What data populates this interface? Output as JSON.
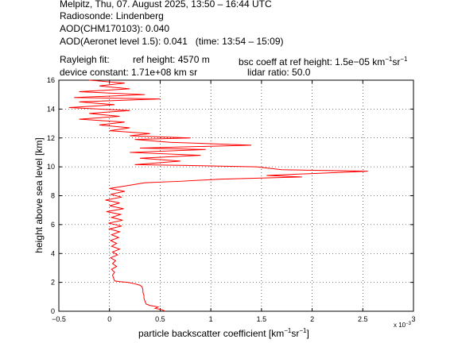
{
  "header": {
    "line1": "Melpitz, Thu, 07. August 2025, 13:50 – 16:44 UTC",
    "line2": "Radiosonde: Lindenberg",
    "line3": "AOD(CHM170103): 0.040",
    "line4": "AOD(Aeronet level 1.5): 0.041   (time: 13:54 – 15:09)",
    "rayleigh_label": "Rayleigh fit:",
    "ref_height": "ref height: 4570 m",
    "bsc_prefix": "bsc coeff at ref height: 1.5e−05 km",
    "sr_text": "sr",
    "exp_minus1": "−1",
    "device_constant": "device constant: 1.71e+08 km sr",
    "lidar_ratio": "lidar ratio: 50.0"
  },
  "chart_data": {
    "type": "line",
    "xlabel_prefix": "particle backscatter coefficient [km",
    "xlabel_sr": "sr",
    "xlabel_close": "]",
    "exp_minus1": "−1",
    "ylabel": "height above sea level [km]",
    "x_multiplier": "x 10",
    "x_multiplier_exp": "−3",
    "xlim": [
      -0.5,
      3
    ],
    "ylim": [
      0,
      16
    ],
    "xticks": [
      "−0.5",
      "0",
      "0.5",
      "1",
      "1.5",
      "2",
      "2.5",
      "3"
    ],
    "yticks": [
      "0",
      "2",
      "4",
      "6",
      "8",
      "10",
      "12",
      "14",
      "16"
    ],
    "grid": true,
    "line_color": "#ff0000",
    "series": [
      {
        "points": [
          [
            0.55,
            0.0
          ],
          [
            0.52,
            0.1
          ],
          [
            0.45,
            0.2
          ],
          [
            0.48,
            0.3
          ],
          [
            0.4,
            0.4
          ],
          [
            0.36,
            0.5
          ],
          [
            0.35,
            0.7
          ],
          [
            0.34,
            0.9
          ],
          [
            0.34,
            1.1
          ],
          [
            0.33,
            1.3
          ],
          [
            0.33,
            1.5
          ],
          [
            0.32,
            1.7
          ],
          [
            0.3,
            1.8
          ],
          [
            0.25,
            1.9
          ],
          [
            0.18,
            2.0
          ],
          [
            0.1,
            2.05
          ],
          [
            0.05,
            2.1
          ],
          [
            0.04,
            2.3
          ],
          [
            0.03,
            2.5
          ],
          [
            0.05,
            2.7
          ],
          [
            0.02,
            2.9
          ],
          [
            0.07,
            3.1
          ],
          [
            0.03,
            3.3
          ],
          [
            0.06,
            3.5
          ],
          [
            0.01,
            3.7
          ],
          [
            0.08,
            3.9
          ],
          [
            0.03,
            4.1
          ],
          [
            0.1,
            4.3
          ],
          [
            0.02,
            4.5
          ],
          [
            0.07,
            4.7
          ],
          [
            0.01,
            4.9
          ],
          [
            0.09,
            5.1
          ],
          [
            0.02,
            5.3
          ],
          [
            0.1,
            5.5
          ],
          [
            0.0,
            5.7
          ],
          [
            0.12,
            5.9
          ],
          [
            -0.01,
            6.1
          ],
          [
            0.13,
            6.3
          ],
          [
            0.02,
            6.5
          ],
          [
            0.11,
            6.7
          ],
          [
            -0.03,
            6.9
          ],
          [
            0.14,
            7.1
          ],
          [
            0.0,
            7.3
          ],
          [
            0.1,
            7.5
          ],
          [
            -0.04,
            7.7
          ],
          [
            0.12,
            7.9
          ],
          [
            0.01,
            8.1
          ],
          [
            0.15,
            8.3
          ],
          [
            0.0,
            8.5
          ],
          [
            0.18,
            8.7
          ],
          [
            0.35,
            8.9
          ],
          [
            0.7,
            9.0
          ],
          [
            1.1,
            9.15
          ],
          [
            1.9,
            9.3
          ],
          [
            1.55,
            9.4
          ],
          [
            2.55,
            9.7
          ],
          [
            1.7,
            9.8
          ],
          [
            1.45,
            10.0
          ],
          [
            1.1,
            10.05
          ],
          [
            0.7,
            10.1
          ],
          [
            0.25,
            10.15
          ],
          [
            0.7,
            10.4
          ],
          [
            0.3,
            10.6
          ],
          [
            0.9,
            10.8
          ],
          [
            0.2,
            11.0
          ],
          [
            0.95,
            11.2
          ],
          [
            0.3,
            11.3
          ],
          [
            1.4,
            11.5
          ],
          [
            0.6,
            11.7
          ],
          [
            0.25,
            11.9
          ],
          [
            0.8,
            12.0
          ],
          [
            0.2,
            12.15
          ],
          [
            0.4,
            12.3
          ],
          [
            0.0,
            12.5
          ],
          [
            0.2,
            12.7
          ],
          [
            -0.1,
            12.9
          ],
          [
            0.15,
            13.1
          ],
          [
            -0.3,
            13.3
          ],
          [
            0.1,
            13.5
          ],
          [
            -0.2,
            13.7
          ],
          [
            0.2,
            13.9
          ],
          [
            -0.4,
            14.1
          ],
          [
            0.05,
            14.3
          ],
          [
            -0.3,
            14.5
          ],
          [
            0.5,
            14.7
          ],
          [
            -0.35,
            14.8
          ],
          [
            0.35,
            15.0
          ],
          [
            -0.3,
            15.2
          ],
          [
            0.2,
            15.4
          ],
          [
            -0.1,
            15.6
          ],
          [
            0.15,
            15.8
          ],
          [
            -0.2,
            16.0
          ]
        ]
      }
    ]
  }
}
